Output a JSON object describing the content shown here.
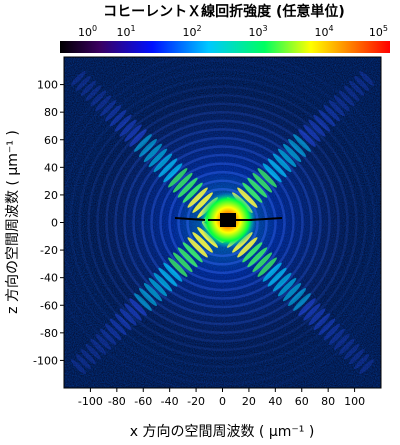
{
  "chart_data": {
    "type": "heatmap",
    "title": "コヒーレントＸ線回折強度 (任意単位)",
    "xlabel": "x 方向の空間周波数 ( μm⁻¹ )",
    "ylabel": "z 方向の空間周波数 ( μm⁻¹ )",
    "xlim": [
      -120,
      120
    ],
    "ylim": [
      -120,
      120
    ],
    "x_ticks": [
      -100,
      -80,
      -60,
      -40,
      -20,
      0,
      20,
      40,
      60,
      80,
      100
    ],
    "y_ticks": [
      -100,
      -80,
      -60,
      -40,
      -20,
      0,
      20,
      40,
      60,
      80,
      100
    ],
    "colorbar": {
      "scale": "log",
      "range": [
        1,
        100000
      ],
      "ticks": [
        {
          "base": "10",
          "exp": "0"
        },
        {
          "base": "10",
          "exp": "1"
        },
        {
          "base": "10",
          "exp": "2"
        },
        {
          "base": "10",
          "exp": "3"
        },
        {
          "base": "10",
          "exp": "4"
        },
        {
          "base": "10",
          "exp": "5"
        }
      ],
      "colors": [
        "#000000",
        "#3a0060",
        "#0010ff",
        "#00c8ff",
        "#00ff60",
        "#ffff00",
        "#ff8000",
        "#ff0000"
      ]
    },
    "pattern": {
      "streaks": "diagonal X (±45°)",
      "center": "saturated, beam stop at origin"
    }
  }
}
